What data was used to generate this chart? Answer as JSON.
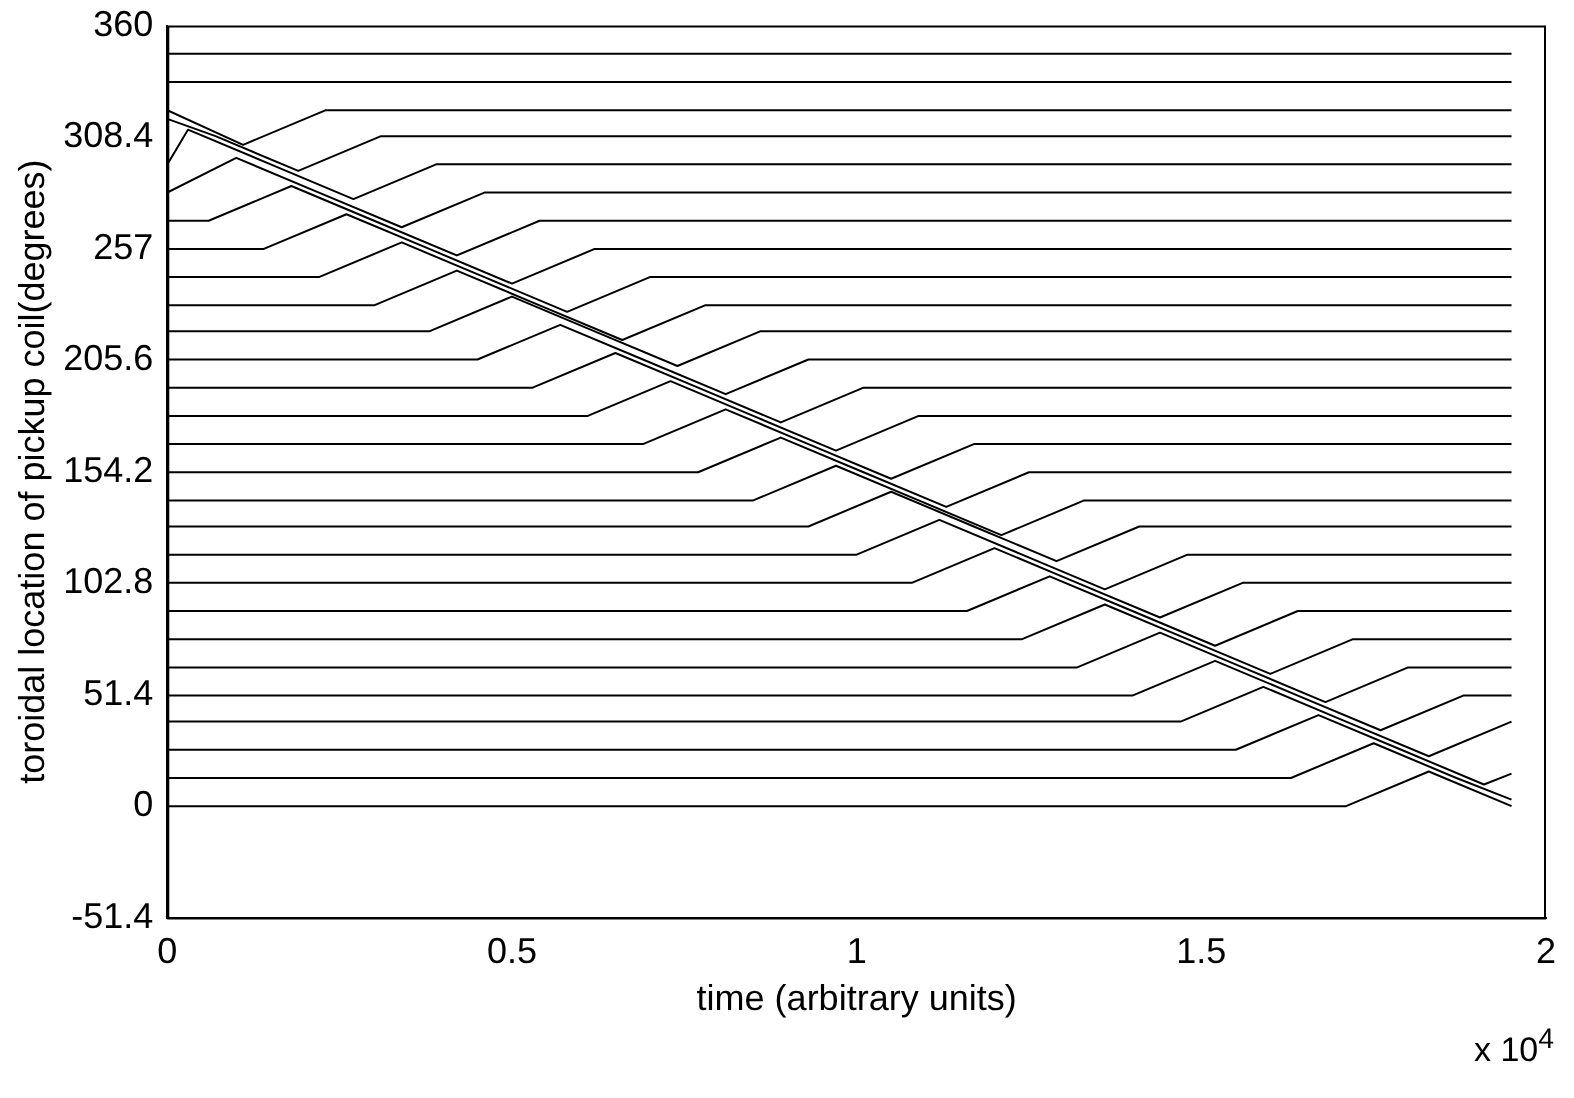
{
  "chart_data": {
    "type": "line",
    "xlabel": "time (arbitrary units)",
    "ylabel": "toroidal location of pickup coil(degrees)",
    "annotations": [
      "x 10$^{4}$"
    ],
    "xlim": [
      0,
      2
    ],
    "xticks": [
      0,
      0.5,
      1,
      1.5,
      2
    ],
    "ylim": [
      -51.4,
      360
    ],
    "yticks": [
      -51.4,
      0,
      51.4,
      102.8,
      154.2,
      205.6,
      257,
      308.4,
      360
    ],
    "grid": false,
    "legend": false,
    "marker": "none",
    "series": [
      {
        "color": "#000000",
        "x": [
          0,
          1.71,
          1.83,
          1.95
        ],
        "values": [
          0,
          0,
          16,
          0
        ]
      },
      {
        "color": "#000000",
        "x": [
          0,
          1.63,
          1.75,
          1.87,
          1.95
        ],
        "values": [
          13,
          13,
          29,
          13,
          3
        ]
      },
      {
        "color": "#000000",
        "x": [
          0,
          1.55,
          1.67,
          1.79,
          1.91,
          1.95
        ],
        "values": [
          26,
          26,
          42,
          26,
          10,
          15
        ]
      },
      {
        "color": "#000000",
        "x": [
          0,
          1.47,
          1.59,
          1.71,
          1.83,
          1.95
        ],
        "values": [
          39,
          39,
          55,
          39,
          23,
          39
        ]
      },
      {
        "color": "#000000",
        "x": [
          0,
          1.4,
          1.52,
          1.64,
          1.76,
          1.88,
          1.95
        ],
        "values": [
          51,
          51,
          67,
          51,
          35,
          51,
          51
        ]
      },
      {
        "color": "#000000",
        "x": [
          0,
          1.32,
          1.44,
          1.56,
          1.68,
          1.8,
          1.95
        ],
        "values": [
          64,
          64,
          80,
          64,
          48,
          64,
          64
        ]
      },
      {
        "color": "#000000",
        "x": [
          0,
          1.24,
          1.36,
          1.48,
          1.6,
          1.72,
          1.95
        ],
        "values": [
          77,
          77,
          93,
          77,
          61,
          77,
          77
        ]
      },
      {
        "color": "#000000",
        "x": [
          0,
          1.16,
          1.28,
          1.4,
          1.52,
          1.64,
          1.95
        ],
        "values": [
          90,
          90,
          106,
          90,
          74,
          90,
          90
        ]
      },
      {
        "color": "#000000",
        "x": [
          0,
          1.08,
          1.2,
          1.32,
          1.44,
          1.56,
          1.95
        ],
        "values": [
          103,
          103,
          119,
          103,
          87,
          103,
          103
        ]
      },
      {
        "color": "#000000",
        "x": [
          0,
          1,
          1.12,
          1.24,
          1.36,
          1.48,
          1.95
        ],
        "values": [
          116,
          116,
          132,
          116,
          100,
          116,
          116
        ]
      },
      {
        "color": "#000000",
        "x": [
          0,
          0.93,
          1.05,
          1.17,
          1.29,
          1.41,
          1.95
        ],
        "values": [
          129,
          129,
          145,
          129,
          113,
          129,
          129
        ]
      },
      {
        "color": "#000000",
        "x": [
          0,
          0.85,
          0.97,
          1.09,
          1.21,
          1.33,
          1.95
        ],
        "values": [
          141,
          141,
          157,
          141,
          125,
          141,
          141
        ]
      },
      {
        "color": "#000000",
        "x": [
          0,
          0.77,
          0.89,
          1.01,
          1.13,
          1.25,
          1.95
        ],
        "values": [
          154,
          154,
          170,
          154,
          138,
          154,
          154
        ]
      },
      {
        "color": "#000000",
        "x": [
          0,
          0.69,
          0.81,
          0.93,
          1.05,
          1.17,
          1.95
        ],
        "values": [
          167,
          167,
          183,
          167,
          151,
          167,
          167
        ]
      },
      {
        "color": "#000000",
        "x": [
          0,
          0.61,
          0.73,
          0.85,
          0.97,
          1.09,
          1.95
        ],
        "values": [
          180,
          180,
          196,
          180,
          164,
          180,
          180
        ]
      },
      {
        "color": "#000000",
        "x": [
          0,
          0.53,
          0.65,
          0.77,
          0.89,
          1.01,
          1.95
        ],
        "values": [
          193,
          193,
          209,
          193,
          177,
          193,
          193
        ]
      },
      {
        "color": "#000000",
        "x": [
          0,
          0.45,
          0.57,
          0.69,
          0.81,
          0.93,
          1.95
        ],
        "values": [
          206,
          206,
          222,
          206,
          190,
          206,
          206
        ]
      },
      {
        "color": "#000000",
        "x": [
          0,
          0.38,
          0.5,
          0.62,
          0.74,
          0.86,
          1.95
        ],
        "values": [
          219,
          219,
          235,
          219,
          203,
          219,
          219
        ]
      },
      {
        "color": "#000000",
        "x": [
          0,
          0.3,
          0.42,
          0.54,
          0.66,
          0.78,
          1.95
        ],
        "values": [
          231,
          231,
          247,
          231,
          215,
          231,
          231
        ]
      },
      {
        "color": "#000000",
        "x": [
          0,
          0.22,
          0.34,
          0.46,
          0.58,
          0.7,
          1.95
        ],
        "values": [
          244,
          244,
          260,
          244,
          228,
          244,
          244
        ]
      },
      {
        "color": "#000000",
        "x": [
          0,
          0.14,
          0.26,
          0.38,
          0.5,
          0.62,
          1.95
        ],
        "values": [
          257,
          257,
          273,
          257,
          241,
          257,
          257
        ]
      },
      {
        "color": "#000000",
        "x": [
          0,
          0.06,
          0.18,
          0.3,
          0.42,
          0.54,
          1.95
        ],
        "values": [
          270,
          270,
          286,
          270,
          254,
          270,
          270
        ]
      },
      {
        "color": "#000000",
        "x": [
          0,
          0.1,
          0.22,
          0.34,
          0.46,
          1.95
        ],
        "values": [
          283,
          299,
          283,
          267,
          283,
          283
        ]
      },
      {
        "color": "#000000",
        "x": [
          0,
          0.03,
          0.15,
          0.27,
          0.39,
          1.95
        ],
        "values": [
          296,
          312,
          296,
          280,
          296,
          296
        ]
      },
      {
        "color": "#000000",
        "x": [
          0,
          0.07,
          0.19,
          0.31,
          1.95
        ],
        "values": [
          317,
          309,
          293,
          309,
          309
        ]
      },
      {
        "color": "#000000",
        "x": [
          0,
          0.11,
          0.23,
          1.95
        ],
        "values": [
          321,
          305,
          321,
          321
        ]
      },
      {
        "color": "#000000",
        "x": [
          0,
          1.95
        ],
        "values": [
          334,
          334
        ]
      },
      {
        "color": "#000000",
        "x": [
          0,
          1.95
        ],
        "values": [
          347,
          347
        ]
      }
    ]
  }
}
